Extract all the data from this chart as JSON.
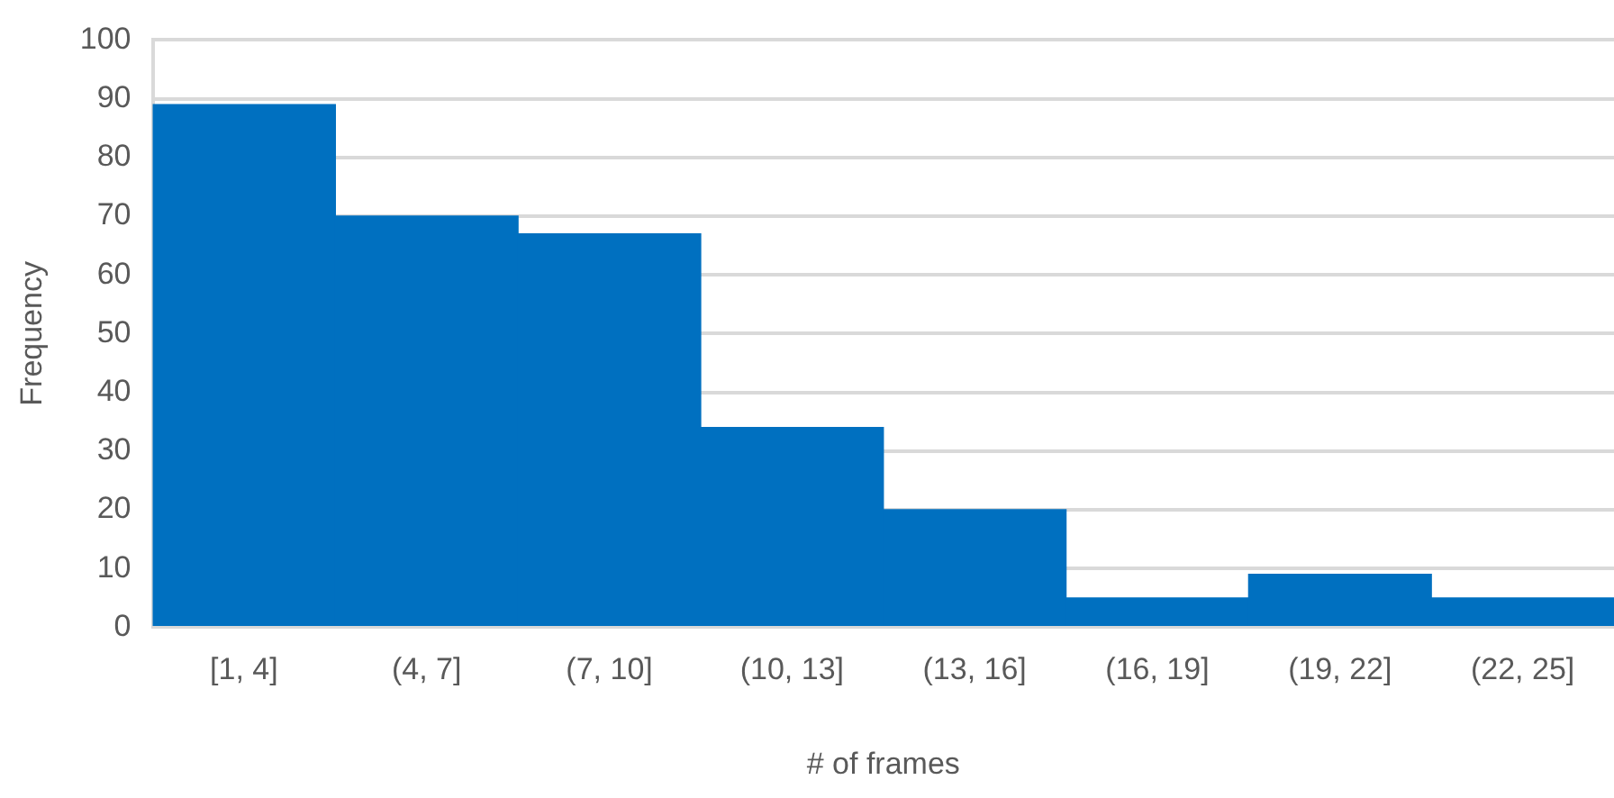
{
  "chart_data": {
    "type": "bar",
    "xlabel": "# of frames",
    "ylabel": "Frequency",
    "categories": [
      "[1, 4]",
      "(4, 7]",
      "(7, 10]",
      "(10, 13]",
      "(13, 16]",
      "(16, 19]",
      "(19, 22]",
      "(22, 25]"
    ],
    "values": [
      89,
      70,
      67,
      34,
      20,
      5,
      9,
      5
    ],
    "color": "#0070c0",
    "ylim": [
      0,
      100
    ],
    "yticks": [
      0,
      10,
      20,
      30,
      40,
      50,
      60,
      70,
      80,
      90,
      100
    ],
    "grid": "y"
  }
}
